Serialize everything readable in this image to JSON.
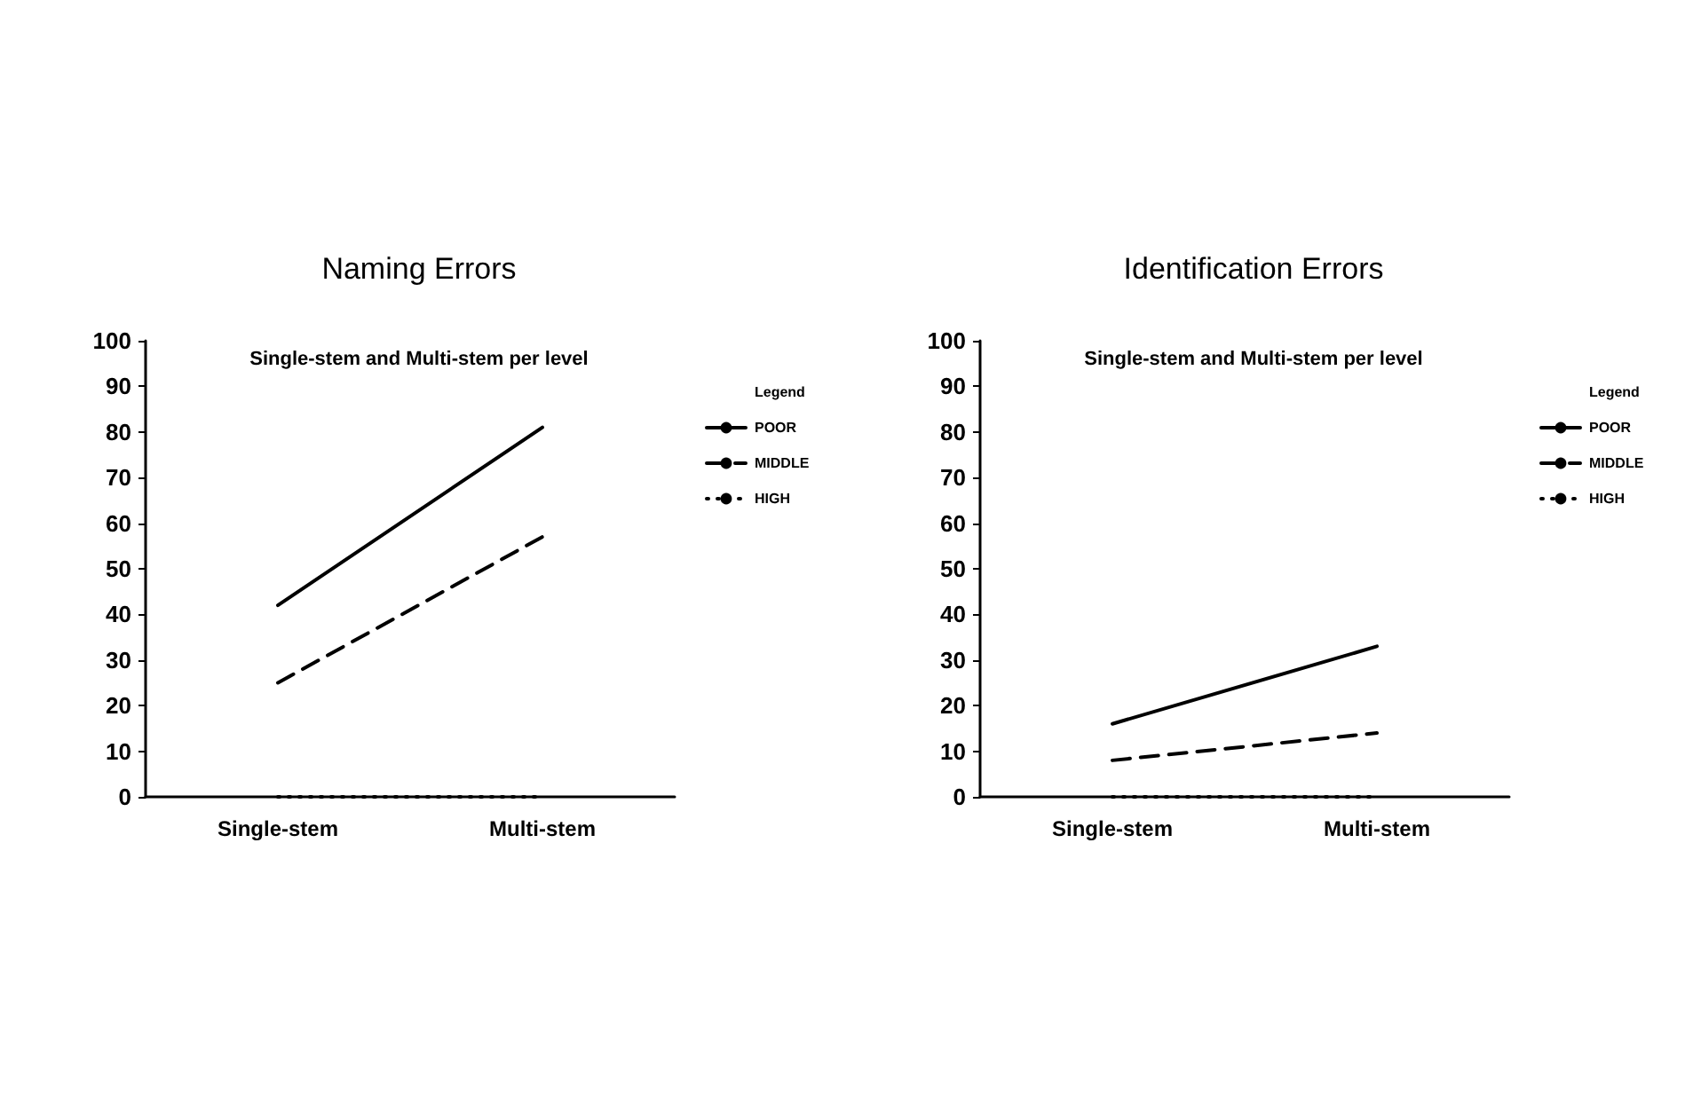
{
  "chart_data": [
    {
      "type": "line",
      "title": "Naming Errors",
      "subtitle": "Single-stem and Multi-stem per level",
      "legend_title": "Legend",
      "categories": [
        "Single-stem",
        "Multi-stem"
      ],
      "series": [
        {
          "name": "POOR",
          "color": "#000000",
          "line_style": "solid",
          "values": [
            42,
            81
          ]
        },
        {
          "name": "MIDDLE",
          "color": "#000000",
          "line_style": "dashed",
          "values": [
            25,
            57
          ]
        },
        {
          "name": "HIGH",
          "color": "#000000",
          "line_style": "dotted",
          "values": [
            0,
            0
          ]
        }
      ],
      "ylim": [
        0,
        100
      ],
      "yticks": [
        0,
        10,
        20,
        30,
        40,
        50,
        60,
        70,
        80,
        90,
        100
      ],
      "grid": false,
      "legend": "right",
      "marker": "none"
    },
    {
      "type": "line",
      "title": "Identification Errors",
      "subtitle": "Single-stem and Multi-stem per level",
      "legend_title": "Legend",
      "categories": [
        "Single-stem",
        "Multi-stem"
      ],
      "series": [
        {
          "name": "POOR",
          "color": "#000000",
          "line_style": "solid",
          "values": [
            16,
            33
          ]
        },
        {
          "name": "MIDDLE",
          "color": "#000000",
          "line_style": "dashed",
          "values": [
            8,
            14
          ]
        },
        {
          "name": "HIGH",
          "color": "#000000",
          "line_style": "dotted",
          "values": [
            0,
            0
          ]
        }
      ],
      "ylim": [
        0,
        100
      ],
      "yticks": [
        0,
        10,
        20,
        30,
        40,
        50,
        60,
        70,
        80,
        90,
        100
      ],
      "grid": false,
      "legend": "right",
      "marker": "none"
    }
  ]
}
